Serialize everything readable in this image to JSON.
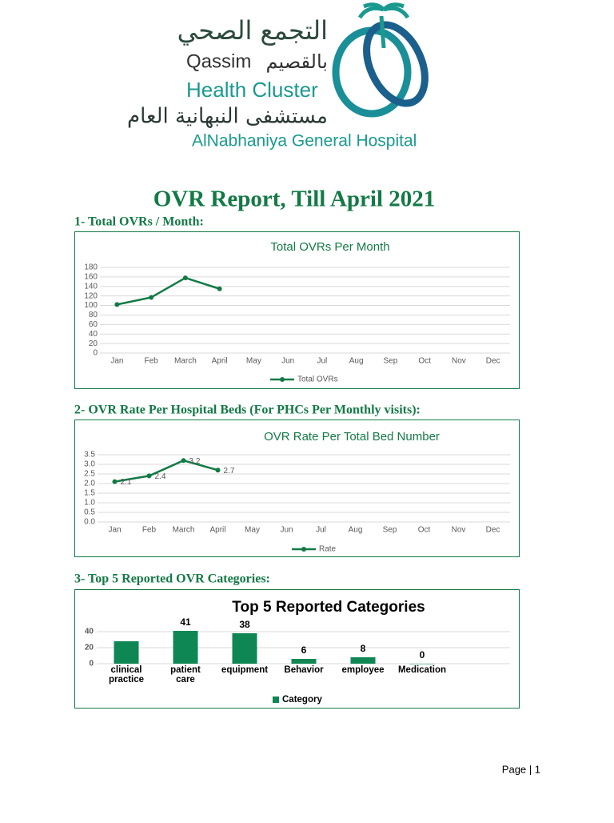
{
  "logo": {
    "arabic_cluster": "التجمع الصحي",
    "qassim": "Qassim",
    "arabic_qassim": "بالقصيم",
    "health_cluster": "Health Cluster",
    "arabic_hospital": "مستشفى النبهانية العام",
    "hospital": "AlNabhaniya General Hospital"
  },
  "title": "OVR Report, Till  April 2021",
  "sections": [
    "1-  Total OVRs / Month:",
    "2-  OVR Rate Per Hospital Beds (For PHCs Per Monthly visits):",
    "3-       Top 5 Reported OVR Categories:"
  ],
  "chart_data": [
    {
      "type": "line",
      "title": "Total OVRs Per Month",
      "categories": [
        "Jan",
        "Feb",
        "March",
        "April",
        "May",
        "Jun",
        "Jul",
        "Aug",
        "Sep",
        "Oct",
        "Nov",
        "Dec"
      ],
      "series": [
        {
          "name": "Total OVRs",
          "color": "#137a45",
          "values": [
            102,
            117,
            158,
            135,
            null,
            null,
            null,
            null,
            null,
            null,
            null,
            null
          ]
        }
      ],
      "ylim": [
        0,
        180
      ],
      "yticks": [
        0,
        20,
        40,
        60,
        80,
        100,
        120,
        140,
        160,
        180
      ],
      "grid": true,
      "legend": "bottom"
    },
    {
      "type": "line",
      "title": "OVR Rate Per Total Bed Number",
      "categories": [
        "Jan",
        "Feb",
        "March",
        "April",
        "May",
        "Jun",
        "Jul",
        "Aug",
        "Sep",
        "Oct",
        "Nov",
        "Dec"
      ],
      "series": [
        {
          "name": "Rate",
          "color": "#137a45",
          "values": [
            2.1,
            2.4,
            3.2,
            2.7,
            null,
            null,
            null,
            null,
            null,
            null,
            null,
            null
          ]
        }
      ],
      "ylim": [
        0,
        3.5
      ],
      "yticks": [
        {
          "value": 0,
          "label": "0.0"
        },
        0.5,
        {
          "value": 1,
          "label": "1.0"
        },
        1.5,
        {
          "value": 2,
          "label": "2.0"
        },
        2.5,
        {
          "value": 3,
          "label": "3.0"
        },
        3.5
      ],
      "grid": true,
      "legend": "bottom",
      "data_labels": true
    },
    {
      "type": "bar",
      "title": "Top 5 Reported Categories",
      "categories": [
        "clinical practice",
        "patient care",
        "equipment",
        "Behavior",
        "employee",
        "Medication"
      ],
      "series": [
        {
          "name": "Category",
          "color": "#0e8754",
          "values": [
            28,
            41,
            38,
            6,
            8,
            0
          ],
          "value_labels": [
            null,
            "41",
            "38",
            "6",
            "8",
            "0"
          ]
        }
      ],
      "ylim": [
        0,
        50
      ],
      "yticks": [
        0,
        20,
        40
      ],
      "grid": true,
      "legend": "bottom"
    }
  ],
  "footer": "Page | 1"
}
